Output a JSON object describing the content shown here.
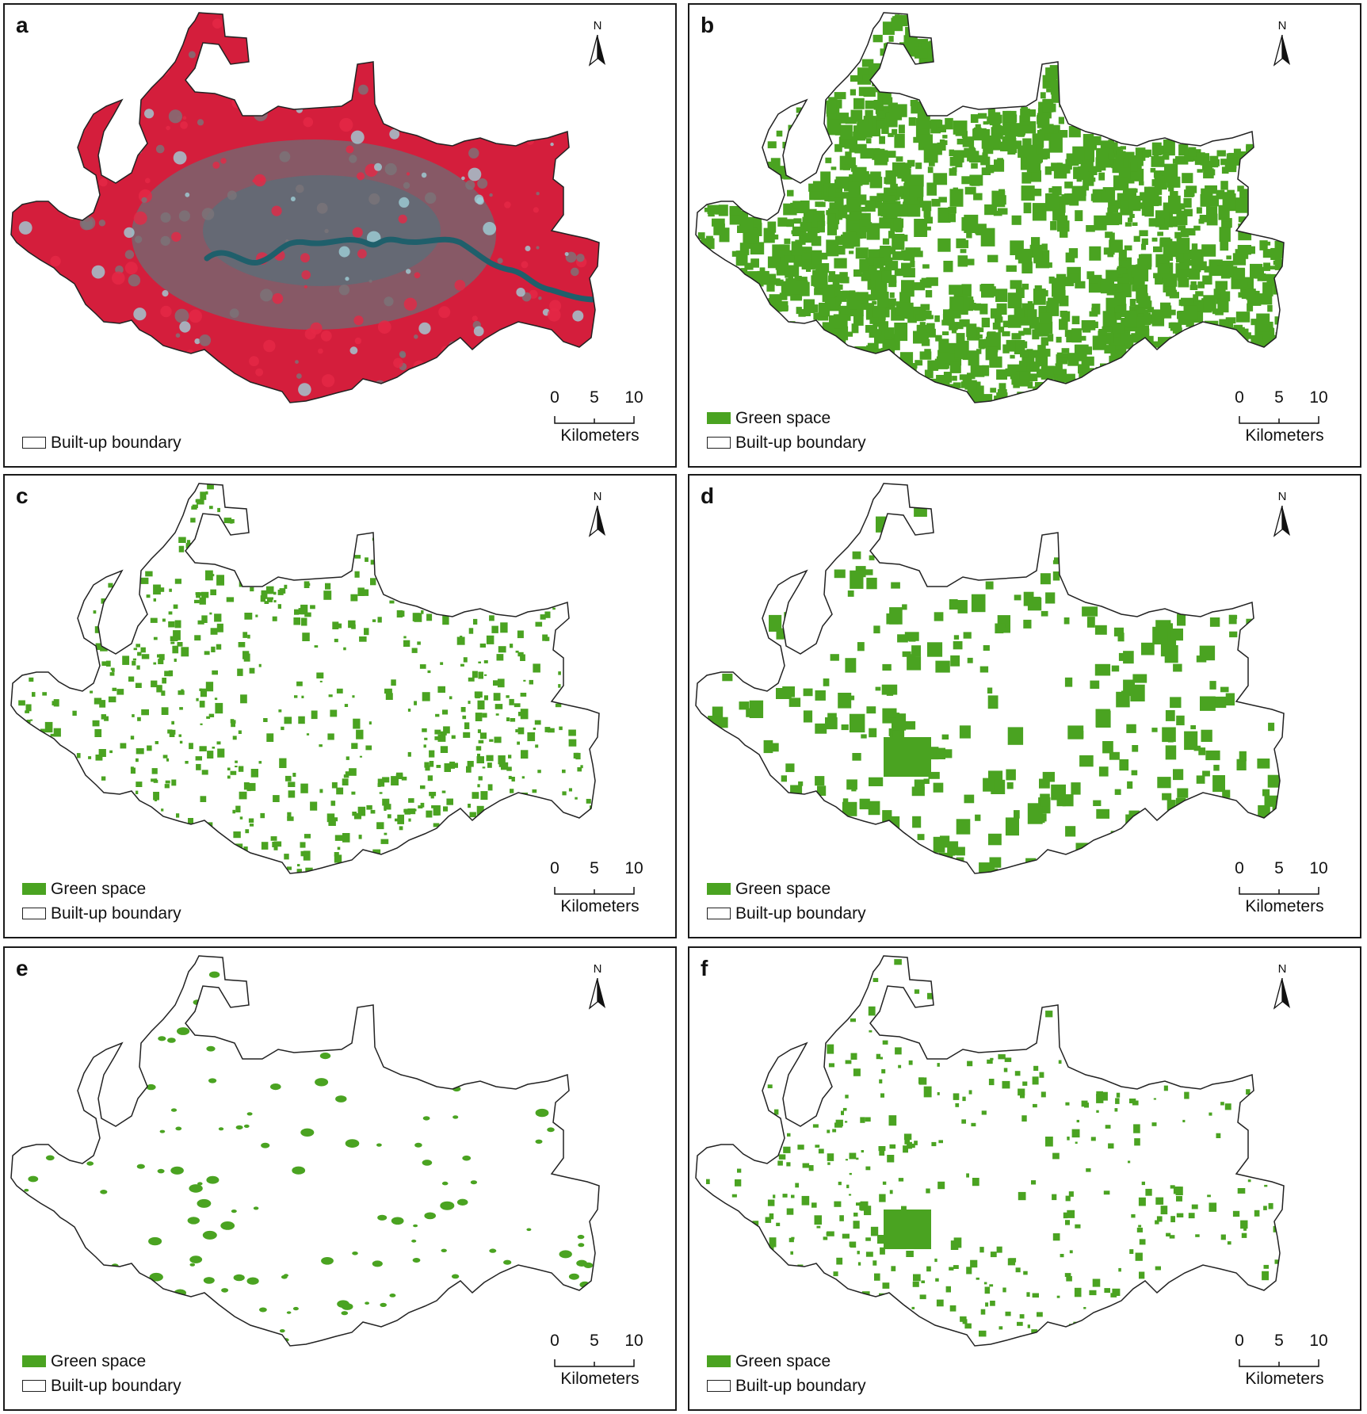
{
  "north_label": "N",
  "scale": {
    "ticks": [
      "0",
      "5",
      "10"
    ],
    "unit": "Kilometers"
  },
  "legend": {
    "green_space": "Green space",
    "boundary": "Built-up boundary"
  },
  "colors": {
    "green_space": "#4aa321",
    "false_color_veg": "#d41e3c",
    "urban": "#6e6e74",
    "water": "#1f5f6b",
    "boundary": "#222222"
  },
  "panels": [
    {
      "label": "a",
      "type": "false-color-composite",
      "legend": [
        "boundary"
      ]
    },
    {
      "label": "b",
      "type": "green-space",
      "density": 0.75,
      "legend": [
        "green_space",
        "boundary"
      ]
    },
    {
      "label": "c",
      "type": "green-space",
      "density": 0.28,
      "legend": [
        "green_space",
        "boundary"
      ]
    },
    {
      "label": "d",
      "type": "green-space",
      "density": 0.14,
      "legend": [
        "green_space",
        "boundary"
      ]
    },
    {
      "label": "e",
      "type": "green-space",
      "density": 0.05,
      "legend": [
        "green_space",
        "boundary"
      ]
    },
    {
      "label": "f",
      "type": "green-space",
      "density": 0.16,
      "legend": [
        "green_space",
        "boundary"
      ]
    }
  ]
}
